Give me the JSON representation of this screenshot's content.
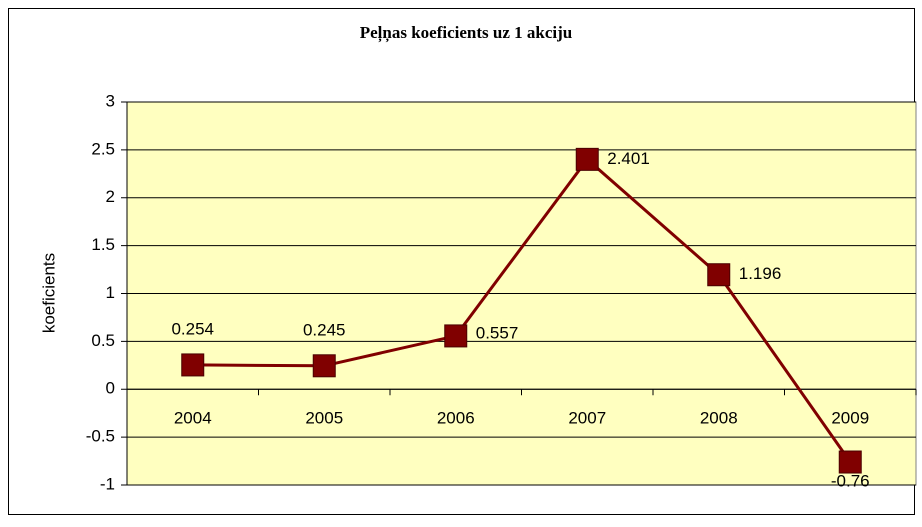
{
  "chart_data": {
    "type": "line",
    "title": "Peļņas koeficients uz 1 akciju",
    "y_label": "koeficients",
    "categories": [
      "2004",
      "2005",
      "2006",
      "2007",
      "2008",
      "2009"
    ],
    "series": [
      {
        "name": "koeficients",
        "color": "#800000",
        "values": [
          0.254,
          0.245,
          0.557,
          2.401,
          1.196,
          -0.76
        ]
      }
    ],
    "ylim": [
      -1,
      3
    ],
    "yticks": [
      -1,
      -0.5,
      0,
      0.5,
      1,
      1.5,
      2,
      2.5,
      3
    ],
    "grid": true,
    "plot_background": "#ffffc0"
  }
}
